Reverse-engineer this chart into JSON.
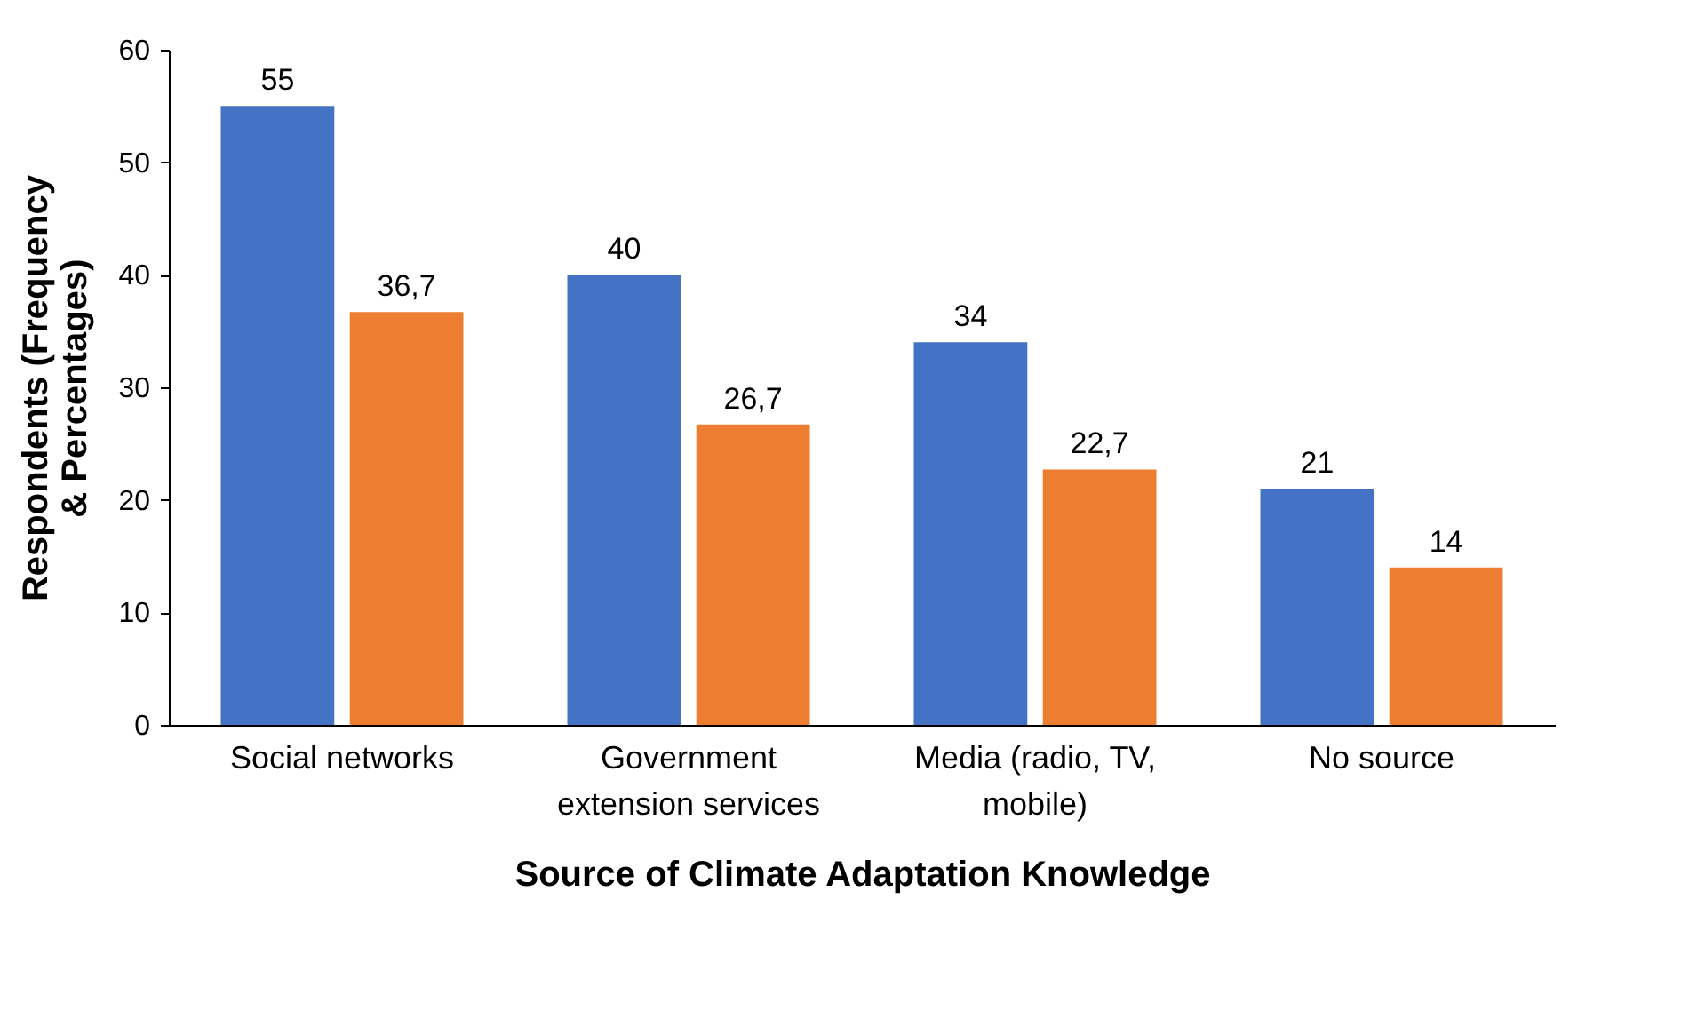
{
  "chart_data": {
    "type": "bar",
    "xlabel": "Source of Climate Adaptation Knowledge",
    "ylabel": "Respondents (Frequency & Percentages)",
    "categories": [
      "Social networks",
      "Government extension services",
      "Media (radio, TV, mobile)",
      "No source"
    ],
    "series": [
      {
        "color": "#4472c4",
        "values": [
          55,
          40,
          34,
          21
        ],
        "value_labels": [
          "55",
          "40",
          "34",
          "21"
        ]
      },
      {
        "color": "#ed7d31",
        "values": [
          36.7,
          26.7,
          22.7,
          14
        ],
        "value_labels": [
          "36,7",
          "26,7",
          "22,7",
          "14"
        ]
      }
    ],
    "ylim": [
      0,
      60
    ],
    "yticks": [
      0,
      10,
      20,
      30,
      40,
      50,
      60
    ],
    "grid": false,
    "legend": false
  }
}
